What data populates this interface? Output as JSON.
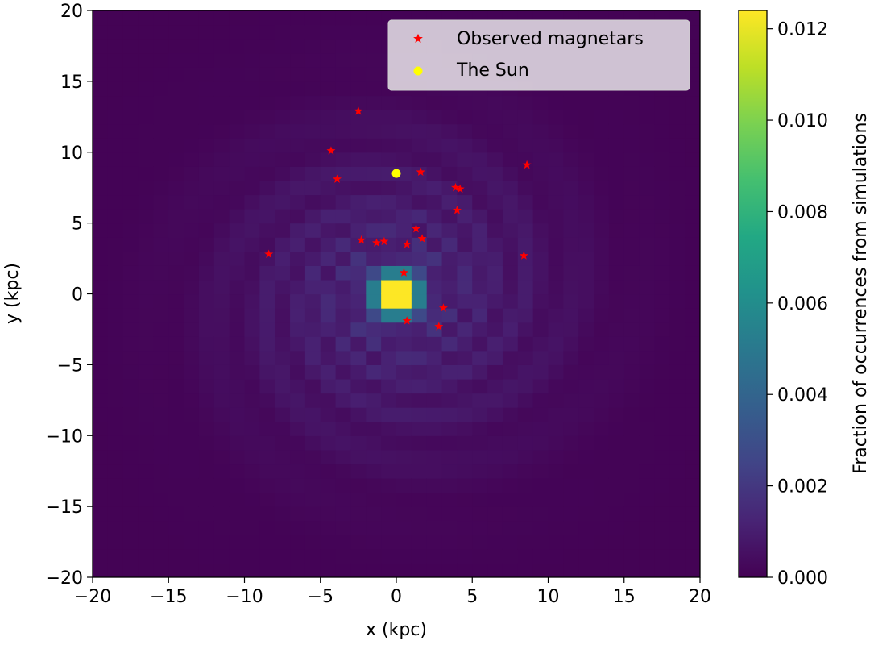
{
  "chart_data": {
    "type": "heatmap",
    "title": "",
    "xlabel": "x (kpc)",
    "ylabel": "y (kpc)",
    "xlim": [
      -20,
      20
    ],
    "ylim": [
      -20,
      20
    ],
    "x_ticks": [
      "−20",
      "−15",
      "−10",
      "−5",
      "0",
      "5",
      "10",
      "15",
      "20"
    ],
    "y_ticks": [
      "−20",
      "−15",
      "−10",
      "−5",
      "0",
      "5",
      "10",
      "15",
      "20"
    ],
    "heatmap": {
      "description": "2D histogram of simulated magnetar positions: four logarithmic spiral arms plus a bright bin at the Galactic centre",
      "bin_size_kpc": 1,
      "center_peak": 0.0124,
      "arm_level": 0.0012
    },
    "colorbar": {
      "label": "Fraction of occurrences from simulations",
      "range": [
        0.0,
        0.0124
      ],
      "ticks": [
        0.0,
        0.002,
        0.004,
        0.006,
        0.008,
        0.01,
        0.012
      ],
      "tick_labels": [
        "0.000",
        "0.002",
        "0.004",
        "0.006",
        "0.008",
        "0.010",
        "0.012"
      ],
      "colormap": "viridis"
    },
    "series": [
      {
        "name": "Observed magnetars",
        "marker": "star",
        "color": "#ff0000",
        "points": [
          [
            -2.5,
            12.9
          ],
          [
            -4.3,
            10.1
          ],
          [
            -3.9,
            8.1
          ],
          [
            1.6,
            8.6
          ],
          [
            8.6,
            9.1
          ],
          [
            3.9,
            7.5
          ],
          [
            4.2,
            7.4
          ],
          [
            4.0,
            5.9
          ],
          [
            1.3,
            4.6
          ],
          [
            -2.3,
            3.8
          ],
          [
            -1.3,
            3.6
          ],
          [
            -0.8,
            3.7
          ],
          [
            0.7,
            3.5
          ],
          [
            1.7,
            3.9
          ],
          [
            -8.4,
            2.8
          ],
          [
            8.4,
            2.7
          ],
          [
            0.5,
            1.5
          ],
          [
            3.1,
            -1.0
          ],
          [
            0.7,
            -1.9
          ],
          [
            2.8,
            -2.3
          ]
        ]
      },
      {
        "name": "The Sun",
        "marker": "circle",
        "color": "#ffff00",
        "points": [
          [
            0.0,
            8.5
          ]
        ]
      }
    ],
    "legend": {
      "location": "top-right",
      "entries": [
        "Observed magnetars",
        "The Sun"
      ]
    }
  }
}
